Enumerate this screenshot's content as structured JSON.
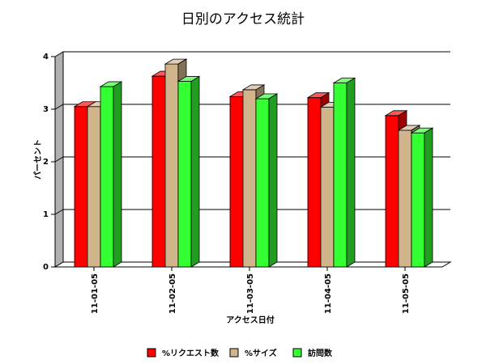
{
  "chart_data": {
    "type": "bar",
    "title": "日別のアクセス統計",
    "xlabel": "アクセス日付",
    "ylabel": "パーセント",
    "categories": [
      "11-01-05",
      "11-02-05",
      "11-03-05",
      "11-04-05",
      "11-05-05"
    ],
    "series": [
      {
        "name": "%リクエスト数",
        "color": "#ff0000",
        "values": [
          3.05,
          3.63,
          3.24,
          3.22,
          2.88
        ]
      },
      {
        "name": "%サイズ",
        "color": "#d2b48c",
        "values": [
          3.05,
          3.86,
          3.37,
          3.04,
          2.6
        ]
      },
      {
        "name": "訪問数",
        "color": "#33ff33",
        "values": [
          3.43,
          3.53,
          3.2,
          3.5,
          2.55
        ]
      }
    ],
    "ylim": [
      0,
      4
    ],
    "yticks": [
      "0",
      "1",
      "2",
      "3",
      "4"
    ],
    "grid": true,
    "legend_position": "bottom"
  }
}
